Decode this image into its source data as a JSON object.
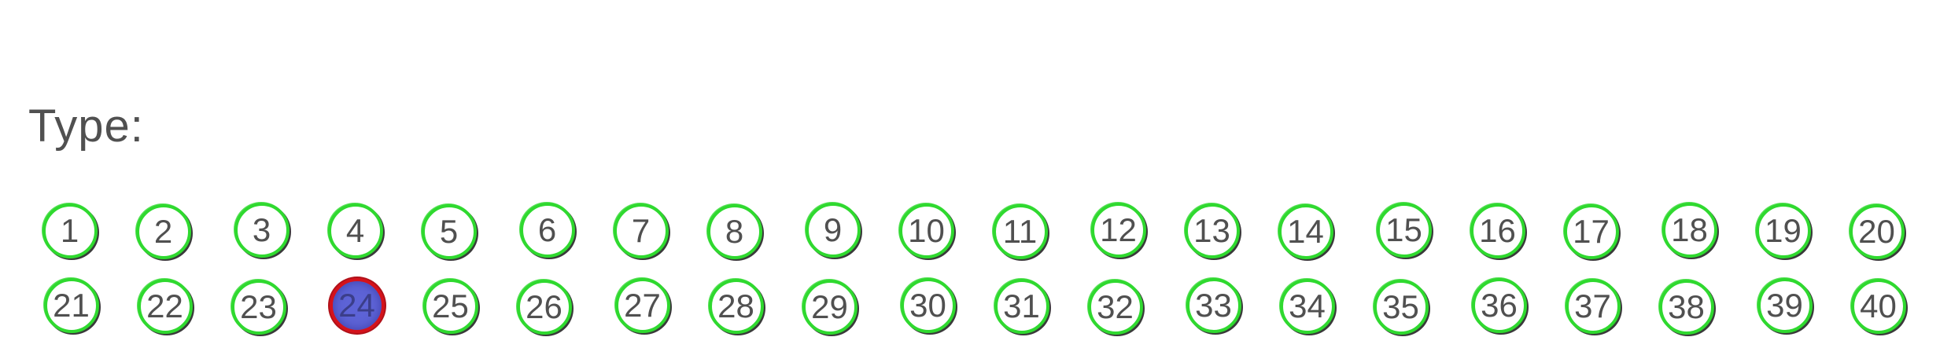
{
  "form": {
    "label": "Type:"
  },
  "bubbles": [
    {
      "label": "1",
      "selected": false
    },
    {
      "label": "2",
      "selected": false
    },
    {
      "label": "3",
      "selected": false
    },
    {
      "label": "4",
      "selected": false
    },
    {
      "label": "5",
      "selected": false
    },
    {
      "label": "6",
      "selected": false
    },
    {
      "label": "7",
      "selected": false
    },
    {
      "label": "8",
      "selected": false
    },
    {
      "label": "9",
      "selected": false
    },
    {
      "label": "10",
      "selected": false
    },
    {
      "label": "11",
      "selected": false
    },
    {
      "label": "12",
      "selected": false
    },
    {
      "label": "13",
      "selected": false
    },
    {
      "label": "14",
      "selected": false
    },
    {
      "label": "15",
      "selected": false
    },
    {
      "label": "16",
      "selected": false
    },
    {
      "label": "17",
      "selected": false
    },
    {
      "label": "18",
      "selected": false
    },
    {
      "label": "19",
      "selected": false
    },
    {
      "label": "20",
      "selected": false
    },
    {
      "label": "21",
      "selected": false
    },
    {
      "label": "22",
      "selected": false
    },
    {
      "label": "23",
      "selected": false
    },
    {
      "label": "24",
      "selected": true
    },
    {
      "label": "25",
      "selected": false
    },
    {
      "label": "26",
      "selected": false
    },
    {
      "label": "27",
      "selected": false
    },
    {
      "label": "28",
      "selected": false
    },
    {
      "label": "29",
      "selected": false
    },
    {
      "label": "30",
      "selected": false
    },
    {
      "label": "31",
      "selected": false
    },
    {
      "label": "32",
      "selected": false
    },
    {
      "label": "33",
      "selected": false
    },
    {
      "label": "34",
      "selected": false
    },
    {
      "label": "35",
      "selected": false
    },
    {
      "label": "36",
      "selected": false
    },
    {
      "label": "37",
      "selected": false
    },
    {
      "label": "38",
      "selected": false
    },
    {
      "label": "39",
      "selected": false
    },
    {
      "label": "40",
      "selected": false
    }
  ],
  "colors": {
    "bubble_border": "#2fd92f",
    "selected_border": "#d4121b",
    "selected_fill": "#5d63d6",
    "text": "#505050"
  }
}
